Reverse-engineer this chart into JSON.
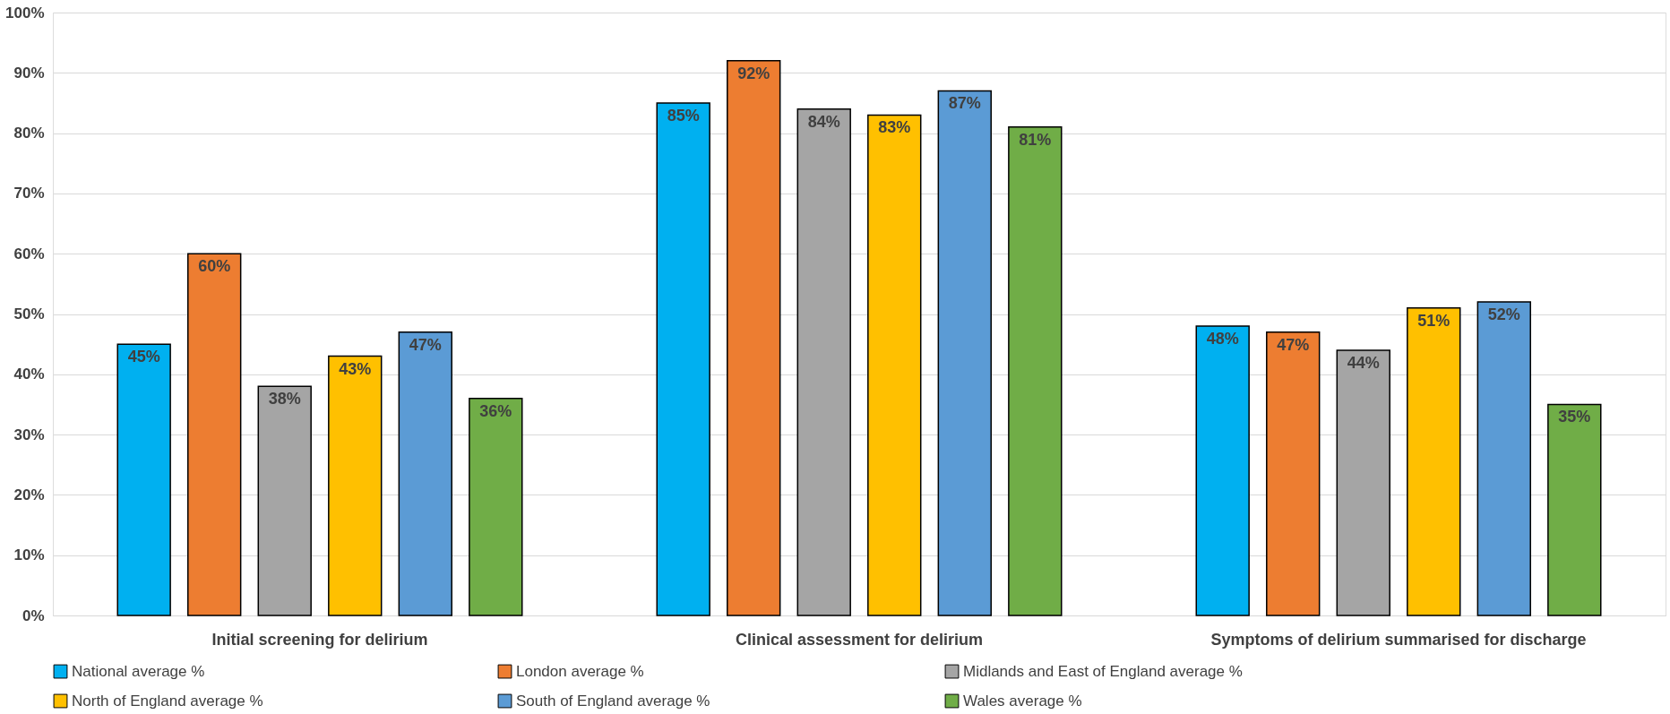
{
  "chart_data": {
    "type": "bar",
    "categories": [
      "Initial screening for delirium",
      "Clinical assessment for delirium",
      "Symptoms of delirium summarised for discharge"
    ],
    "series": [
      {
        "name": "National average %",
        "color": "#00b0f0",
        "values": [
          45,
          85,
          48
        ],
        "value_labels": [
          "45%",
          "85%",
          "48%"
        ]
      },
      {
        "name": "London average %",
        "color": "#ed7d31",
        "values": [
          60,
          92,
          47
        ],
        "value_labels": [
          "60%",
          "92%",
          "47%"
        ]
      },
      {
        "name": "Midlands and East of England average %",
        "color": "#a5a5a5",
        "values": [
          38,
          84,
          44
        ],
        "value_labels": [
          "38%",
          "84%",
          "44%"
        ]
      },
      {
        "name": "North of England average %",
        "color": "#ffc000",
        "values": [
          43,
          83,
          51
        ],
        "value_labels": [
          "43%",
          "83%",
          "51%"
        ]
      },
      {
        "name": "South of England average %",
        "color": "#5b9bd5",
        "values": [
          47,
          87,
          52
        ],
        "value_labels": [
          "47%",
          "87%",
          "52%"
        ]
      },
      {
        "name": "Wales average %",
        "color": "#70ad47",
        "values": [
          36,
          81,
          35
        ],
        "value_labels": [
          "36%",
          "81%",
          "35%"
        ]
      }
    ],
    "ylim": [
      0,
      100
    ],
    "yticks": [
      {
        "value": 0,
        "label": "0%"
      },
      {
        "value": 10,
        "label": "10%"
      },
      {
        "value": 20,
        "label": "20%"
      },
      {
        "value": 30,
        "label": "30%"
      },
      {
        "value": 40,
        "label": "40%"
      },
      {
        "value": 50,
        "label": "50%"
      },
      {
        "value": 60,
        "label": "60%"
      },
      {
        "value": 70,
        "label": "70%"
      },
      {
        "value": 80,
        "label": "80%"
      },
      {
        "value": 90,
        "label": "90%"
      },
      {
        "value": 100,
        "label": "100%"
      }
    ],
    "grid": "y",
    "legend": "bottom"
  }
}
